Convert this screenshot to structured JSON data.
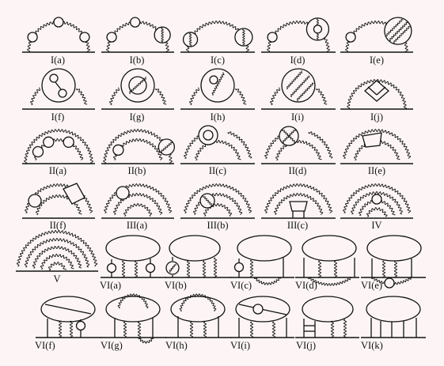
{
  "figure": {
    "diagrams": [
      {
        "id": "Ia",
        "label": "I(a)"
      },
      {
        "id": "Ib",
        "label": "I(b)"
      },
      {
        "id": "Ic",
        "label": "I(c)"
      },
      {
        "id": "Id",
        "label": "I(d)"
      },
      {
        "id": "Ie",
        "label": "I(e)"
      },
      {
        "id": "If",
        "label": "I(f)"
      },
      {
        "id": "Ig",
        "label": "I(g)"
      },
      {
        "id": "Ih",
        "label": "I(h)"
      },
      {
        "id": "Ii",
        "label": "I(i)"
      },
      {
        "id": "Ij",
        "label": "I(j)"
      },
      {
        "id": "IIa",
        "label": "II(a)"
      },
      {
        "id": "IIb",
        "label": "II(b)"
      },
      {
        "id": "IIc",
        "label": "II(c)"
      },
      {
        "id": "IId",
        "label": "II(d)"
      },
      {
        "id": "IIe",
        "label": "II(e)"
      },
      {
        "id": "IIf",
        "label": "II(f)"
      },
      {
        "id": "IIIa",
        "label": "III(a)"
      },
      {
        "id": "IIIb",
        "label": "III(b)"
      },
      {
        "id": "IIIc",
        "label": "III(c)"
      },
      {
        "id": "IV",
        "label": "IV"
      },
      {
        "id": "V",
        "label": "V"
      },
      {
        "id": "VIa",
        "label": "VI(a)"
      },
      {
        "id": "VIb",
        "label": "VI(b)"
      },
      {
        "id": "VIc",
        "label": "VI(c)"
      },
      {
        "id": "VId",
        "label": "VI(d)"
      },
      {
        "id": "VIe",
        "label": "VI(e)"
      },
      {
        "id": "VIf",
        "label": "VI(f)"
      },
      {
        "id": "VIg",
        "label": "VI(g)"
      },
      {
        "id": "VIh",
        "label": "VI(h)"
      },
      {
        "id": "VIi",
        "label": "VI(i)"
      },
      {
        "id": "VIj",
        "label": "VI(j)"
      },
      {
        "id": "VIk",
        "label": "VI(k)"
      }
    ],
    "colors": {
      "ink": "#111111",
      "background": "#fdf5f5"
    }
  }
}
